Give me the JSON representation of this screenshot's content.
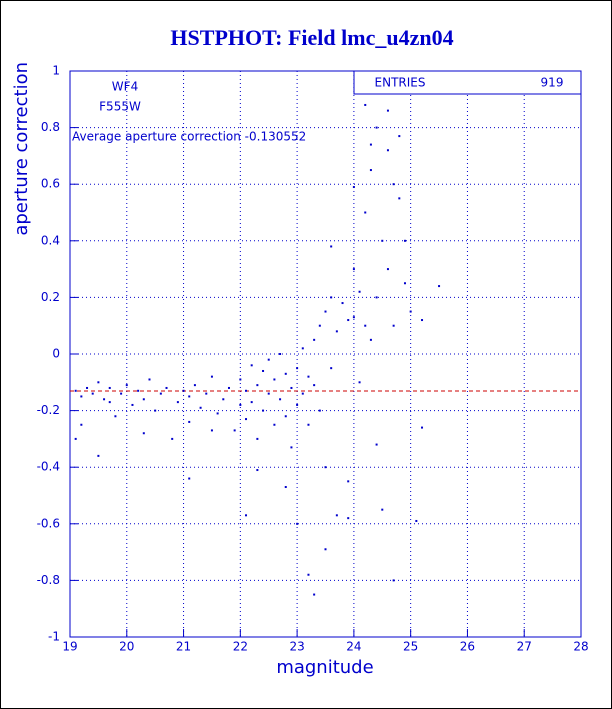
{
  "chart_data": {
    "type": "scatter",
    "title": "HSTPHOT: Field lmc_u4zn04",
    "x_label": "magnitude",
    "y_label": "aperture correction",
    "annotations": [
      "WF4",
      "F555W"
    ],
    "mean_line": {
      "value": -0.130552,
      "label": "Average aperture correction -0.130552",
      "color": "#cc0000"
    },
    "stats": {
      "label": "ENTRIES",
      "value": 919
    },
    "xlim": [
      19,
      28
    ],
    "ylim": [
      -1,
      1
    ],
    "xticks": [
      19,
      20,
      21,
      22,
      23,
      24,
      25,
      26,
      27,
      28
    ],
    "yticks": [
      -1,
      -0.8,
      -0.6,
      -0.4,
      -0.2,
      0,
      0.2,
      0.4,
      0.6,
      0.8,
      1
    ],
    "grid": true,
    "color": "#0000cc",
    "x": [
      19.1,
      19.2,
      19.3,
      19.1,
      19.2,
      19.4,
      19.5,
      19.5,
      19.6,
      19.7,
      19.8,
      19.9,
      20.0,
      20.1,
      20.2,
      20.3,
      20.4,
      20.5,
      20.6,
      20.7,
      20.8,
      20.9,
      21.0,
      21.1,
      21.1,
      21.2,
      21.3,
      21.4,
      21.5,
      21.6,
      21.7,
      21.8,
      21.9,
      22.0,
      22.0,
      22.1,
      22.1,
      22.2,
      22.2,
      22.3,
      22.3,
      22.4,
      22.4,
      22.5,
      22.5,
      22.6,
      22.6,
      22.7,
      22.7,
      22.8,
      22.8,
      22.9,
      22.9,
      23.0,
      23.0,
      23.1,
      23.1,
      23.2,
      23.2,
      23.3,
      23.3,
      23.4,
      23.4,
      23.5,
      23.5,
      23.6,
      23.6,
      23.7,
      23.7,
      23.8,
      23.9,
      23.9,
      24.0,
      24.0,
      24.1,
      24.1,
      24.2,
      24.2,
      24.3,
      24.3,
      24.4,
      24.4,
      24.5,
      24.5,
      24.6,
      24.6,
      24.7,
      24.7,
      24.8,
      24.8,
      24.9,
      24.9,
      25.0,
      25.2,
      25.5,
      24.2,
      24.6,
      23.3,
      22.8,
      22.1,
      21.1,
      23.5,
      23.9,
      24.7,
      25.1,
      23.2,
      21.5,
      20.3,
      19.7,
      22.3,
      23.0,
      23.6,
      24.0,
      24.3,
      25.2,
      24.4
    ],
    "values": [
      -0.13,
      -0.15,
      -0.12,
      -0.3,
      -0.25,
      -0.14,
      -0.1,
      -0.36,
      -0.16,
      -0.12,
      -0.22,
      -0.14,
      -0.11,
      -0.18,
      -0.13,
      -0.16,
      -0.09,
      -0.2,
      -0.14,
      -0.12,
      -0.3,
      -0.17,
      -0.13,
      -0.24,
      -0.15,
      -0.11,
      -0.19,
      -0.14,
      -0.08,
      -0.21,
      -0.16,
      -0.12,
      -0.27,
      -0.18,
      -0.09,
      -0.23,
      -0.13,
      -0.04,
      -0.17,
      -0.3,
      -0.11,
      -0.06,
      -0.2,
      -0.14,
      -0.02,
      -0.25,
      -0.09,
      -0.16,
      0.0,
      -0.22,
      -0.07,
      -0.12,
      -0.33,
      -0.05,
      -0.18,
      0.02,
      -0.14,
      -0.08,
      -0.25,
      0.05,
      -0.11,
      0.1,
      -0.2,
      0.15,
      -0.4,
      0.2,
      -0.05,
      0.08,
      -0.57,
      0.18,
      0.12,
      -0.45,
      0.3,
      0.13,
      0.22,
      -0.1,
      0.5,
      0.1,
      0.65,
      0.05,
      0.8,
      0.2,
      0.4,
      -0.55,
      0.72,
      0.3,
      0.6,
      0.1,
      0.77,
      0.55,
      0.4,
      0.25,
      0.15,
      0.12,
      0.24,
      0.88,
      0.86,
      -0.85,
      -0.47,
      -0.57,
      -0.44,
      -0.69,
      -0.58,
      -0.8,
      -0.59,
      -0.78,
      -0.27,
      -0.28,
      -0.17,
      -0.41,
      -0.6,
      0.38,
      0.59,
      0.74,
      -0.26,
      -0.32
    ]
  }
}
